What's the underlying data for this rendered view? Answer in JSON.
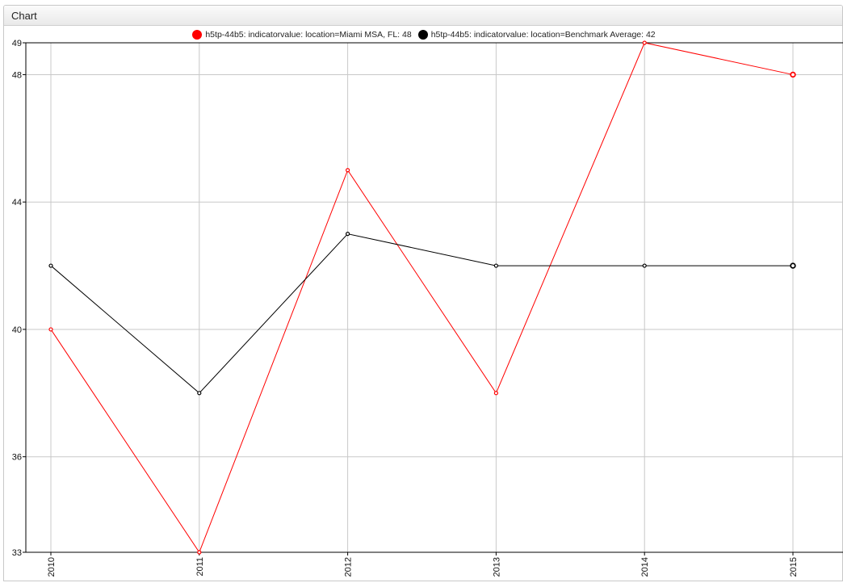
{
  "widget": {
    "title": "Chart"
  },
  "chart_data": {
    "type": "line",
    "x": [
      "2010",
      "2011",
      "2012",
      "2013",
      "2014",
      "2015"
    ],
    "y_ticks": [
      33,
      36,
      40,
      44,
      48,
      49
    ],
    "ylim": [
      33,
      49
    ],
    "grid": true,
    "legend_position": "top-center",
    "series": [
      {
        "name": "h5tp-44b5: indicatorvalue: location=Miami MSA, FL: 48",
        "color": "#ff0000",
        "values": [
          40,
          33,
          45,
          38,
          49,
          48
        ]
      },
      {
        "name": "h5tp-44b5: indicatorvalue: location=Benchmark Average: 42",
        "color": "#000000",
        "values": [
          42,
          38,
          43,
          42,
          42,
          42
        ]
      }
    ]
  }
}
